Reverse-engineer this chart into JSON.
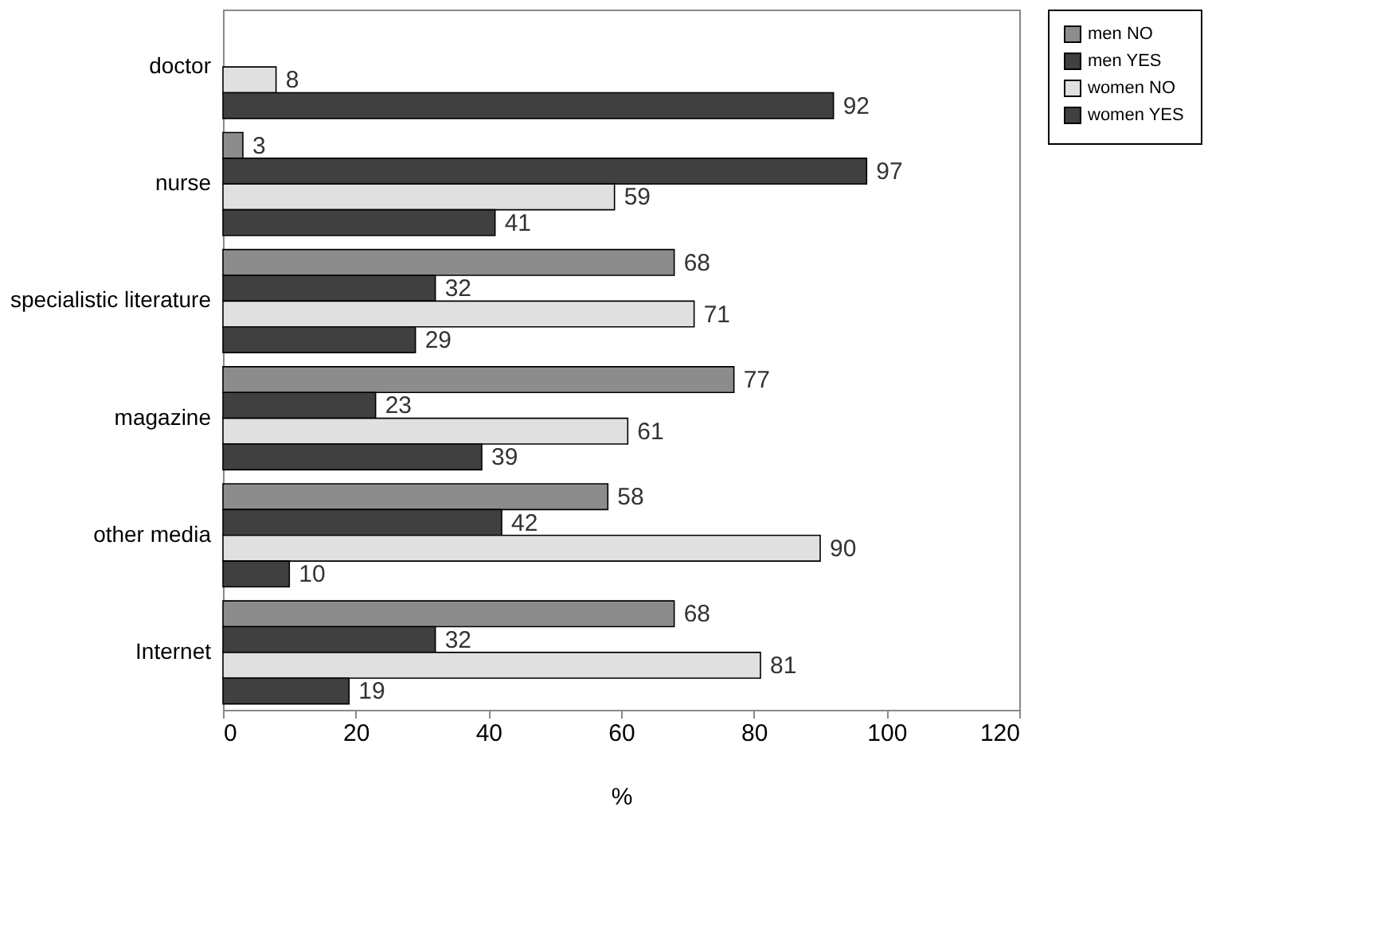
{
  "chart_data": {
    "type": "bar",
    "orientation": "horizontal",
    "xlabel": "%",
    "categories": [
      "doctor",
      "nurse",
      "specialistic literature",
      "magazine",
      "other media",
      "Internet"
    ],
    "series": [
      {
        "name": "men NO",
        "color": "#8c8c8c",
        "values": [
          null,
          3,
          68,
          77,
          58,
          68
        ]
      },
      {
        "name": "men YES",
        "color": "#404040",
        "values": [
          null,
          97,
          32,
          23,
          42,
          32
        ]
      },
      {
        "name": "women NO",
        "color": "#e0e0e0",
        "values": [
          8,
          59,
          71,
          61,
          90,
          81
        ]
      },
      {
        "name": "women YES",
        "color": "#404040",
        "values": [
          92,
          41,
          29,
          39,
          10,
          19
        ]
      }
    ],
    "xlim": [
      0,
      120
    ],
    "xticks": [
      0,
      20,
      40,
      60,
      80,
      100,
      120
    ],
    "data_labels": true,
    "legend": "right",
    "grid": false
  }
}
